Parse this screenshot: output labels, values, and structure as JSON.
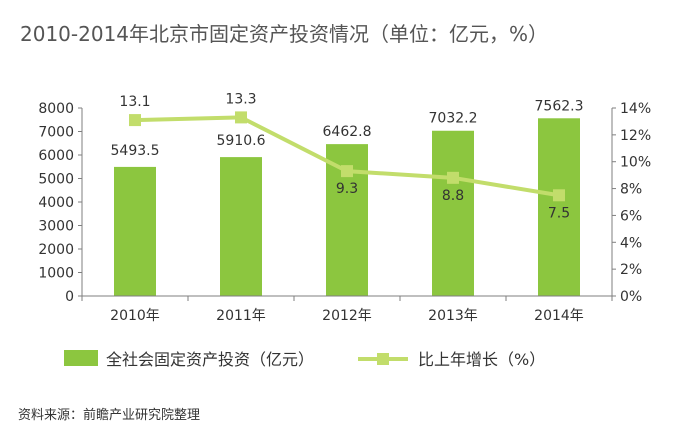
{
  "chart_data": {
    "type": "bar",
    "title": "2010-2014年北京市固定资产投资情况（单位：亿元，%）",
    "categories": [
      "2010年",
      "2011年",
      "2012年",
      "2013年",
      "2014年"
    ],
    "series": [
      {
        "name": "全社会固定资产投资（亿元）",
        "type": "bar",
        "axis": "left",
        "values": [
          5493.5,
          5910.6,
          6462.8,
          7032.2,
          7562.3
        ],
        "labels": [
          "5493.5",
          "5910.6",
          "6462.8",
          "7032.2",
          "7562.3"
        ],
        "color": "#8cc63f"
      },
      {
        "name": "比上年增长（%）",
        "type": "line",
        "axis": "right",
        "values": [
          13.1,
          13.3,
          9.3,
          8.8,
          7.5
        ],
        "labels": [
          "13.1",
          "13.3",
          "9.3",
          "8.8",
          "7.5"
        ],
        "color": "#c2dd6b"
      }
    ],
    "y_left": {
      "min": 0,
      "max": 8000,
      "ticks": [
        "0",
        "1000",
        "2000",
        "3000",
        "4000",
        "5000",
        "6000",
        "7000",
        "8000"
      ]
    },
    "y_right": {
      "min": 0,
      "max": 14,
      "ticks": [
        "0%",
        "2%",
        "4%",
        "6%",
        "8%",
        "10%",
        "12%",
        "14%"
      ]
    },
    "grid": false,
    "legend_position": "bottom",
    "source": "资料来源：前瞻产业研究院整理"
  }
}
